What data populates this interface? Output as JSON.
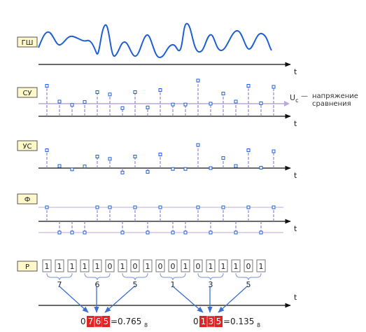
{
  "rows": {
    "gsh": {
      "label": "ГШ",
      "axis": "t"
    },
    "su": {
      "label": "СУ",
      "axis": "t"
    },
    "us": {
      "label": "УС",
      "axis": "t"
    },
    "f": {
      "label": "Ф",
      "axis": "t"
    },
    "r": {
      "label": "Р",
      "axis": "t"
    }
  },
  "threshold": {
    "symbol": "U",
    "subscript": "c",
    "dash": "—",
    "line1": "напряжение",
    "line2": "сравнения"
  },
  "samples": [
    0.85,
    0.1,
    -0.06,
    0.08,
    0.55,
    0.44,
    -0.21,
    0.55,
    -0.18,
    0.65,
    -0.04,
    -0.04,
    1.1,
    0,
    0.48,
    0.1,
    0.85,
    0.02,
    0.8
  ],
  "bits": [
    "1",
    "1",
    "1",
    "1",
    "1",
    "0",
    "1",
    "0",
    "1",
    "0",
    "0",
    "1",
    "0",
    "1",
    "1",
    "1",
    "0",
    "1"
  ],
  "groups": [
    "7",
    "6",
    "5",
    "1",
    "3",
    "5"
  ],
  "result1": {
    "prefix": "0.",
    "d1": "7",
    "d2": "6",
    "d3": "5",
    "eq": "=0.765",
    "base": "8"
  },
  "result2": {
    "prefix": "0.",
    "d1": "1",
    "d2": "3",
    "d3": "5",
    "eq": "=0.135",
    "base": "8"
  },
  "colors": {
    "noise": "#1f5fd6",
    "axis": "#111111",
    "label_bg": "#fff8c8",
    "stem": "#9b82d6",
    "threshold": "#b9a9de",
    "highlight": "#e52222",
    "arrow": "#3d6fd1",
    "bracket": "#8fa7de"
  }
}
